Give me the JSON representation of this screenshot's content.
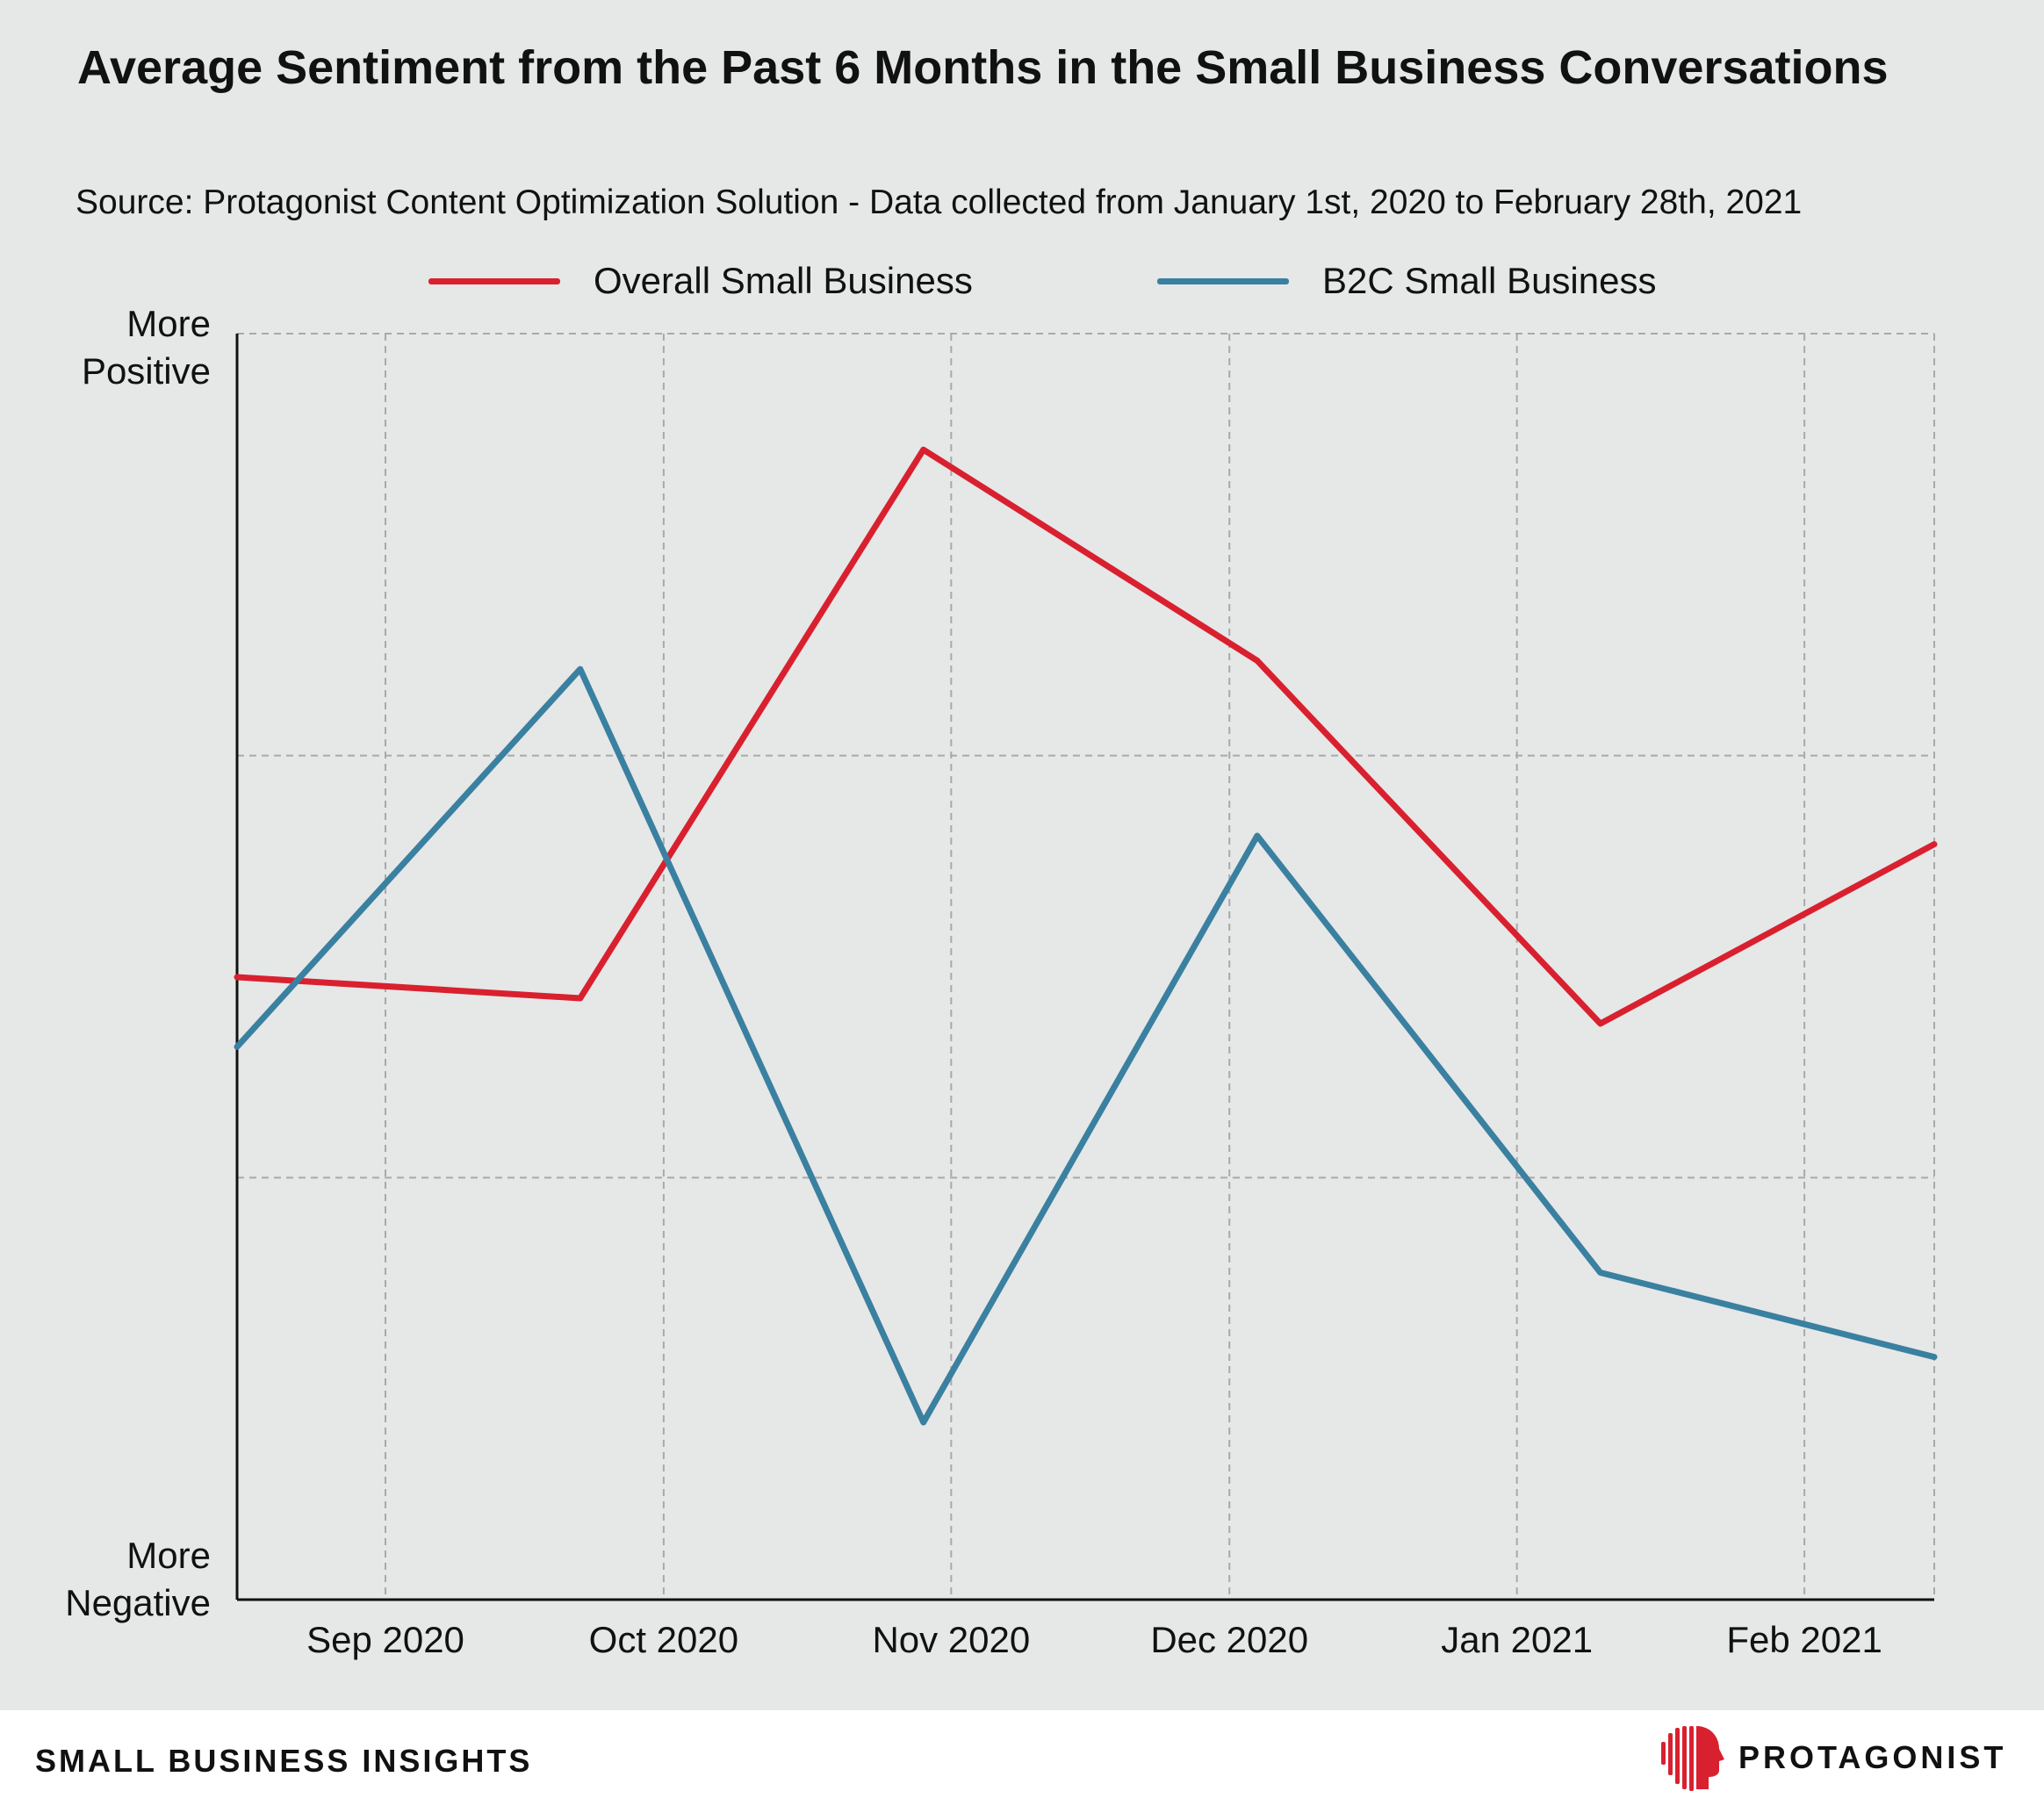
{
  "title": "Average Sentiment from the Past 6 Months in the Small Business Conversations",
  "subtitle": "Source: Protagonist Content Optimization Solution - Data collected from January 1st, 2020 to February 28th, 2021",
  "colors": {
    "overall": "#d9202f",
    "b2c": "#3a80a0",
    "background": "#e6e7e7",
    "grid": "#a9a9a9"
  },
  "chart_data": {
    "type": "line",
    "xlabel": "",
    "ylabel": "",
    "y_top_label": "More Positive",
    "y_bottom_label": "More Negative",
    "ylim": [
      0,
      6
    ],
    "xlim": [
      "2020-08-16",
      "2021-02-15"
    ],
    "x_ticks": [
      "2020-09-01",
      "2020-10-01",
      "2020-11-01",
      "2020-12-01",
      "2021-01-01",
      "2021-02-01"
    ],
    "x_tick_labels": [
      "Sep 2020",
      "Oct 2020",
      "Nov 2020",
      "Dec 2020",
      "Jan 2021",
      "Feb 2021"
    ],
    "grid": true,
    "legend_position": "top-center",
    "series": [
      {
        "name": "Overall Small Business",
        "color": "#d9202f",
        "x": [
          "2020-08-16",
          "2020-09-22",
          "2020-10-29",
          "2020-12-04",
          "2021-01-10",
          "2021-02-15"
        ],
        "values": [
          2.95,
          2.85,
          5.45,
          4.45,
          2.73,
          3.58
        ]
      },
      {
        "name": "B2C Small Business",
        "color": "#3a80a0",
        "x": [
          "2020-08-16",
          "2020-09-22",
          "2020-10-29",
          "2020-12-04",
          "2021-01-10",
          "2021-02-15"
        ],
        "values": [
          2.62,
          4.41,
          0.84,
          3.62,
          1.55,
          1.15
        ]
      }
    ]
  },
  "footer": {
    "left_label": "SMALL BUSINESS INSIGHTS",
    "brand": "PROTAGONIST",
    "logo_icon": "protagonist-head-icon"
  }
}
